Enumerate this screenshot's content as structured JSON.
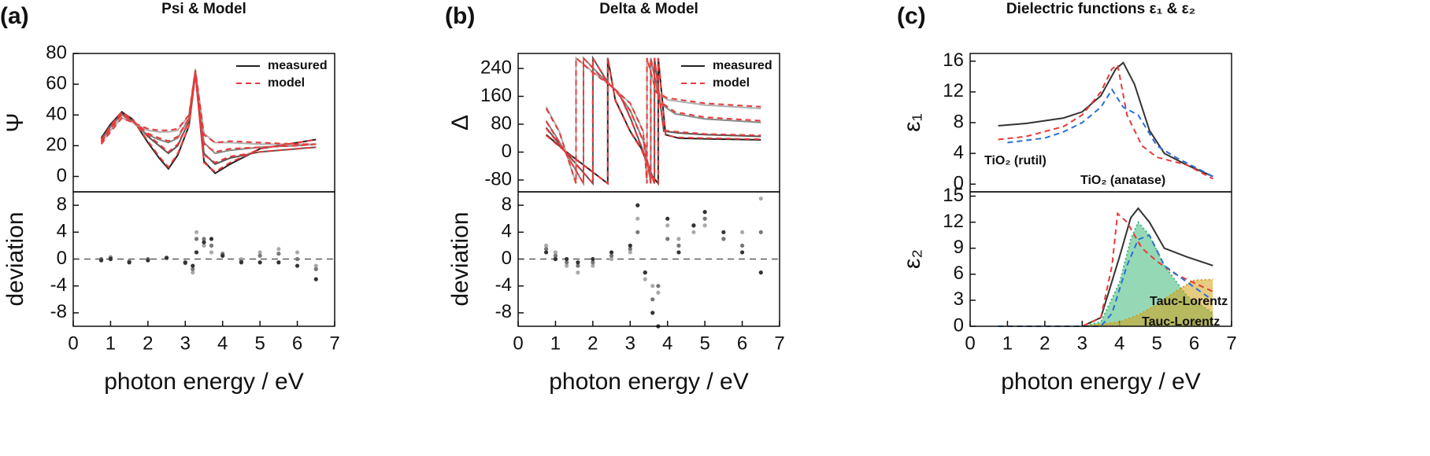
{
  "chart_data": [
    {
      "type": "line",
      "panel_label": "(a)",
      "title": "Psi & Model",
      "ylabel": "Ψ",
      "xlim": [
        0,
        7
      ],
      "ylim": [
        -10,
        80
      ],
      "yticks": [
        0,
        20,
        40,
        60,
        80
      ],
      "legend": "upper right",
      "x": [
        0.75,
        1.0,
        1.3,
        1.6,
        2.0,
        2.3,
        2.55,
        2.8,
        3.1,
        3.27,
        3.5,
        3.8,
        4.2,
        5.0,
        6.0,
        6.5
      ],
      "series": [
        {
          "name": "measured",
          "color": "#222222",
          "linestyle": "solid",
          "values": [
            25,
            34,
            42,
            37,
            22,
            12,
            5,
            14,
            33,
            67,
            10,
            2,
            8,
            18,
            22,
            24
          ]
        },
        {
          "color": "#555555",
          "linestyle": "solid",
          "values": [
            24,
            33,
            41,
            36,
            26,
            20,
            15,
            20,
            36,
            68,
            15,
            8,
            12,
            16,
            18,
            19
          ]
        },
        {
          "color": "#888888",
          "linestyle": "solid",
          "values": [
            23,
            32,
            40,
            35,
            27,
            24,
            22,
            25,
            38,
            69,
            22,
            15,
            17,
            19,
            20,
            21
          ]
        },
        {
          "color": "#b0b0b0",
          "linestyle": "solid",
          "values": [
            22,
            30,
            38,
            35,
            30,
            29,
            29,
            30,
            40,
            70,
            28,
            22,
            22,
            21,
            21,
            21
          ]
        },
        {
          "name": "model",
          "color": "#e8393a",
          "linestyle": "dashed",
          "values": [
            24,
            33,
            42,
            37,
            23,
            13,
            6,
            15,
            33,
            66,
            9,
            3,
            9,
            18,
            22,
            24
          ]
        },
        {
          "color": "#e8393a",
          "linestyle": "dashed",
          "values": [
            23,
            32,
            41,
            36,
            27,
            21,
            16,
            21,
            36,
            67,
            14,
            9,
            13,
            16,
            18,
            19
          ]
        },
        {
          "color": "#e8393a",
          "linestyle": "dashed",
          "values": [
            22,
            31,
            40,
            36,
            28,
            25,
            23,
            26,
            38,
            68,
            21,
            16,
            18,
            19,
            20,
            21
          ]
        },
        {
          "color": "#e8393a",
          "linestyle": "dashed",
          "values": [
            21,
            29,
            38,
            35,
            31,
            30,
            30,
            31,
            40,
            69,
            27,
            22,
            23,
            22,
            21,
            21
          ]
        }
      ]
    },
    {
      "type": "scatter",
      "ylabel": "deviation",
      "xlabel": "photon energy / eV",
      "xlim": [
        0,
        7
      ],
      "xticks": [
        0,
        1,
        2,
        3,
        4,
        5,
        6,
        7
      ],
      "ylim": [
        -10,
        10
      ],
      "yticks": [
        -8,
        -4,
        0,
        4,
        8
      ],
      "zero_line": true,
      "x": [
        0.75,
        1.0,
        1.5,
        2.0,
        2.5,
        3.0,
        3.2,
        3.3,
        3.5,
        3.7,
        4.0,
        4.5,
        5.0,
        5.5,
        6.0,
        6.5
      ],
      "series": [
        {
          "color": "#aaaaaa",
          "values": [
            0,
            0.3,
            -0.3,
            0,
            0.1,
            -0.5,
            -2,
            4,
            2,
            1,
            0.5,
            0,
            1,
            1.5,
            1,
            -1
          ]
        },
        {
          "color": "#777777",
          "values": [
            0,
            0.2,
            -0.4,
            0,
            0.2,
            -0.6,
            -1.5,
            3,
            3,
            2,
            0.8,
            -0.3,
            0.5,
            0.8,
            0,
            -1.5
          ]
        },
        {
          "color": "#333333",
          "values": [
            -0.2,
            0,
            -0.5,
            -0.2,
            0.2,
            -0.5,
            -1,
            1,
            2.5,
            3,
            0.5,
            -0.5,
            -0.5,
            -0.5,
            -1,
            -3
          ]
        }
      ]
    },
    {
      "type": "line",
      "panel_label": "(b)",
      "title": "Delta & Model",
      "ylabel": "Δ",
      "xlim": [
        0,
        7
      ],
      "ylim": [
        -114,
        283
      ],
      "yticks": [
        -80,
        0,
        80,
        160,
        240
      ],
      "legend": "upper right",
      "series": [
        {
          "name": "measured",
          "color": "#222222",
          "linestyle": "solid",
          "x": [
            0.75,
            1.3,
            2.4,
            2.4,
            2.6,
            3.0,
            3.3,
            3.6,
            3.75,
            3.75,
            3.95,
            4.3,
            5.0,
            6.5
          ],
          "values": [
            50,
            0,
            -90,
            270,
            150,
            60,
            10,
            -70,
            -90,
            270,
            50,
            40,
            38,
            35
          ]
        },
        {
          "color": "#555555",
          "linestyle": "solid",
          "x": [
            0.75,
            1.2,
            2.0,
            2.0,
            2.4,
            2.7,
            3.0,
            3.5,
            3.65,
            3.65,
            3.9,
            4.3,
            5.0,
            6.5
          ],
          "values": [
            70,
            10,
            -90,
            270,
            200,
            170,
            100,
            -40,
            -90,
            270,
            60,
            55,
            50,
            45
          ]
        },
        {
          "color": "#888888",
          "linestyle": "solid",
          "x": [
            0.75,
            1.1,
            1.75,
            1.75,
            2.2,
            2.6,
            3.0,
            3.4,
            3.55,
            3.55,
            3.8,
            4.2,
            5.0,
            6.5
          ],
          "values": [
            90,
            30,
            -90,
            270,
            220,
            180,
            120,
            20,
            -90,
            270,
            140,
            110,
            95,
            85
          ]
        },
        {
          "color": "#b0b0b0",
          "linestyle": "solid",
          "x": [
            0.75,
            1.1,
            1.55,
            1.55,
            2.0,
            2.5,
            3.0,
            3.35,
            3.45,
            3.45,
            3.7,
            4.0,
            5.0,
            6.5
          ],
          "values": [
            130,
            60,
            -90,
            270,
            230,
            190,
            140,
            60,
            -90,
            270,
            170,
            150,
            135,
            125
          ]
        },
        {
          "name": "model",
          "color": "#e8393a",
          "linestyle": "dashed",
          "x": [
            0.75,
            1.3,
            2.4,
            2.4,
            2.6,
            3.0,
            3.3,
            3.6,
            3.75,
            3.75,
            3.95,
            4.3,
            5.0,
            6.5
          ],
          "values": [
            48,
            -2,
            -90,
            270,
            148,
            58,
            8,
            -72,
            -90,
            270,
            48,
            42,
            40,
            37
          ]
        },
        {
          "color": "#e8393a",
          "linestyle": "dashed",
          "x": [
            0.75,
            1.2,
            2.0,
            2.0,
            2.4,
            2.7,
            3.0,
            3.5,
            3.65,
            3.65,
            3.9,
            4.3,
            5.0,
            6.5
          ],
          "values": [
            68,
            8,
            -90,
            270,
            198,
            168,
            98,
            -42,
            -90,
            270,
            62,
            58,
            52,
            48
          ]
        },
        {
          "color": "#e8393a",
          "linestyle": "dashed",
          "x": [
            0.75,
            1.1,
            1.75,
            1.75,
            2.2,
            2.6,
            3.0,
            3.4,
            3.55,
            3.55,
            3.8,
            4.2,
            5.0,
            6.5
          ],
          "values": [
            88,
            28,
            -90,
            270,
            218,
            178,
            118,
            18,
            -90,
            270,
            145,
            115,
            100,
            90
          ]
        },
        {
          "color": "#e8393a",
          "linestyle": "dashed",
          "x": [
            0.75,
            1.1,
            1.55,
            1.55,
            2.0,
            2.5,
            3.0,
            3.35,
            3.45,
            3.45,
            3.7,
            4.0,
            5.0,
            6.5
          ],
          "values": [
            125,
            58,
            -90,
            270,
            228,
            188,
            140,
            58,
            -90,
            270,
            172,
            155,
            140,
            130
          ]
        }
      ]
    },
    {
      "type": "scatter",
      "ylabel": "deviation",
      "xlabel": "photon energy / eV",
      "xlim": [
        0,
        7
      ],
      "xticks": [
        0,
        1,
        2,
        3,
        4,
        5,
        6,
        7
      ],
      "ylim": [
        -10,
        10
      ],
      "yticks": [
        -8,
        -4,
        0,
        4,
        8
      ],
      "zero_line": true,
      "x": [
        0.75,
        1.0,
        1.3,
        1.6,
        2.0,
        2.5,
        3.0,
        3.2,
        3.4,
        3.6,
        3.75,
        4.0,
        4.3,
        4.7,
        5.0,
        5.5,
        6.0,
        6.5
      ],
      "series": [
        {
          "color": "#aaaaaa",
          "values": [
            2,
            1,
            -1,
            -2,
            -1,
            0,
            1,
            6,
            -3,
            -4,
            -5,
            5,
            3,
            4,
            5,
            3,
            4,
            9
          ]
        },
        {
          "color": "#777777",
          "values": [
            1.5,
            0.5,
            -0.5,
            -1,
            -0.5,
            0.5,
            1.5,
            4,
            -2,
            -6,
            -4,
            3,
            2,
            5,
            6,
            3,
            2,
            4
          ]
        },
        {
          "color": "#333333",
          "values": [
            1,
            0,
            0,
            -0.5,
            0,
            1,
            2,
            8,
            -2,
            -8,
            -10,
            6,
            1,
            5,
            7,
            4,
            1,
            -2
          ]
        }
      ]
    },
    {
      "type": "line",
      "panel_label": "(c)",
      "title": "Dielectric functions ε₁ & ε₂",
      "ylabel": "ε₁",
      "xlim": [
        0,
        7
      ],
      "ylim": [
        -1,
        17
      ],
      "yticks": [
        0,
        4,
        8,
        12,
        16
      ],
      "series": [
        {
          "color": "#333333",
          "linestyle": "solid",
          "x": [
            0.75,
            1.5,
            2.5,
            3.0,
            3.5,
            3.9,
            4.1,
            4.4,
            4.8,
            5.2,
            5.8,
            6.5
          ],
          "values": [
            7.6,
            7.9,
            8.6,
            9.4,
            11.5,
            15,
            15.8,
            13,
            7,
            4,
            2.5,
            1.0
          ]
        },
        {
          "name": "TiO₂ (rutil)",
          "color": "#e8393a",
          "linestyle": "dashed",
          "x": [
            0.75,
            1.5,
            2.5,
            3.0,
            3.5,
            3.8,
            3.95,
            4.2,
            4.6,
            5.0,
            5.8,
            6.5
          ],
          "values": [
            5.8,
            6.2,
            7.5,
            9,
            12,
            15,
            15.5,
            9,
            5,
            3.5,
            2.5,
            0.7
          ]
        },
        {
          "name": "TiO₂ (anatase)",
          "color": "#2a6fd6",
          "linestyle": "dashed",
          "x": [
            1.0,
            2.0,
            2.5,
            3.0,
            3.5,
            3.8,
            4.1,
            4.5,
            5.0,
            5.5,
            6.5
          ],
          "values": [
            5.4,
            6,
            6.8,
            8,
            10,
            12.3,
            10,
            9,
            5,
            3.5,
            1
          ]
        }
      ]
    },
    {
      "type": "line",
      "ylabel": "ε₂",
      "xlabel": "photon energy / eV",
      "xlim": [
        0,
        7
      ],
      "xticks": [
        0,
        1,
        2,
        3,
        4,
        5,
        6,
        7
      ],
      "ylim": [
        0,
        15.5
      ],
      "yticks": [
        0,
        3,
        6,
        9,
        12,
        15
      ],
      "series": [
        {
          "name": "Tauc-Lorentz",
          "color": "#3cb878",
          "linestyle": "dotted",
          "fill": true,
          "x": [
            3.0,
            3.5,
            4.0,
            4.3,
            4.5,
            4.8,
            5.2,
            5.8,
            6.5
          ],
          "values": [
            0,
            0.5,
            5,
            10,
            12,
            10.5,
            7,
            3.5,
            1.5
          ]
        },
        {
          "name": "Tauc-Lorentz",
          "color": "#d4a017",
          "linestyle": "dotted",
          "fill": true,
          "x": [
            3.0,
            4.0,
            4.5,
            5.0,
            5.5,
            6.0,
            6.5
          ],
          "values": [
            0,
            0.5,
            1.3,
            2.5,
            4,
            5.3,
            5.4
          ]
        },
        {
          "color": "#333333",
          "linestyle": "solid",
          "x": [
            3.0,
            3.5,
            4.0,
            4.3,
            4.5,
            4.8,
            5.2,
            5.8,
            6.5
          ],
          "values": [
            0,
            1,
            8,
            12.5,
            13.6,
            12,
            9,
            8,
            7
          ]
        },
        {
          "color": "#e8393a",
          "linestyle": "dashed",
          "x": [
            0.75,
            3.0,
            3.5,
            3.8,
            3.95,
            4.2,
            4.6,
            5.0,
            5.5,
            6.0,
            6.5
          ],
          "values": [
            0,
            0,
            1,
            7,
            13,
            12,
            9,
            7.5,
            6,
            5,
            4
          ]
        },
        {
          "color": "#2a6fd6",
          "linestyle": "dashed",
          "x": [
            0.75,
            3.5,
            3.8,
            4.2,
            4.5,
            4.8,
            5.2,
            6.0,
            6.5
          ],
          "values": [
            0,
            0,
            1.5,
            7,
            10,
            10.5,
            7,
            4.5,
            3
          ]
        }
      ]
    }
  ]
}
